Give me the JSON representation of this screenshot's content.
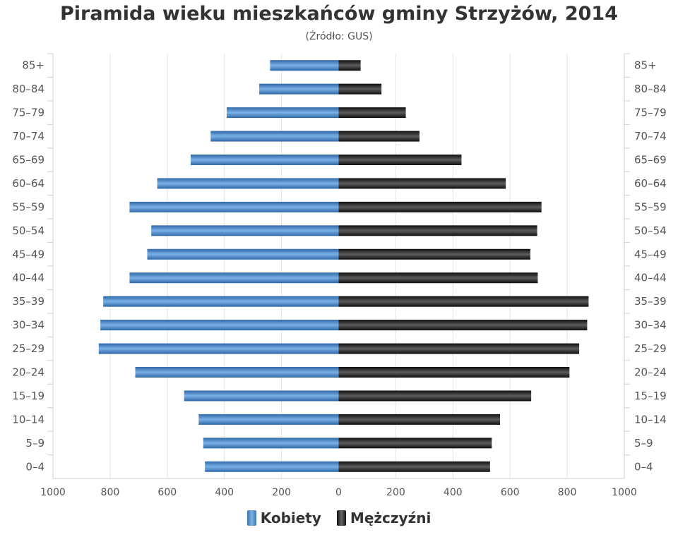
{
  "chart_data": {
    "type": "bar",
    "orientation": "horizontal",
    "title": "Piramida wieku mieszkańców gminy Strzyżów, 2014",
    "subtitle": "(Źródło: GUS)",
    "categories": [
      "85+",
      "80–84",
      "75–79",
      "70–74",
      "65–69",
      "60–64",
      "55–59",
      "50–54",
      "45–49",
      "40–44",
      "35–39",
      "30–34",
      "25–29",
      "20–24",
      "15–19",
      "10–14",
      "5–9",
      "0–4"
    ],
    "series": [
      {
        "name": "Kobiety",
        "color": "#3a74b4",
        "values": [
          240,
          278,
          392,
          448,
          518,
          635,
          732,
          656,
          670,
          732,
          824,
          834,
          840,
          712,
          541,
          490,
          474,
          468
        ]
      },
      {
        "name": "Mężczyźni",
        "color": "#1a1a1a",
        "values": [
          77,
          150,
          235,
          283,
          430,
          585,
          710,
          695,
          671,
          697,
          875,
          870,
          842,
          808,
          674,
          565,
          536,
          530
        ]
      }
    ],
    "xaxis_ticks": [
      "1000",
      "800",
      "600",
      "400",
      "200",
      "0",
      "200",
      "400",
      "600",
      "800",
      "1000"
    ],
    "xlim": [
      -1000,
      1000
    ],
    "grid": true,
    "legend_position": "bottom"
  }
}
